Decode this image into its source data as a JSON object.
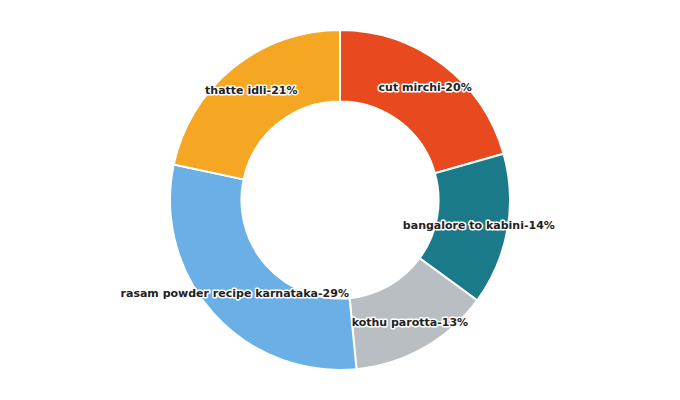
{
  "chart_data": {
    "type": "donut",
    "categories": [
      "cut mirchi-20%",
      "bangalore to kabini-14%",
      "kothu parotta-13%",
      "rasam powder recipe karnataka-29%",
      "thatte idli-21%"
    ],
    "values": [
      20,
      14,
      13,
      29,
      21
    ],
    "colors": [
      "#E8491E",
      "#1A7A8A",
      "#B8BEC2",
      "#6AAFE6",
      "#F5A623"
    ]
  }
}
